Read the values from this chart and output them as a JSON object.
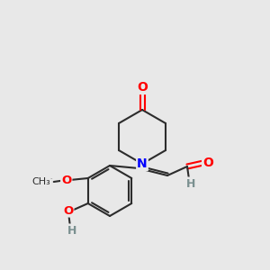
{
  "background_color": "#e8e8e8",
  "bond_color": "#2c2c2c",
  "atom_colors": {
    "O": "#ff0000",
    "N": "#0000ff",
    "H": "#7a9090",
    "C": "#2c2c2c"
  },
  "figsize": [
    3.0,
    3.0
  ],
  "dpi": 100,
  "lw": 1.5
}
